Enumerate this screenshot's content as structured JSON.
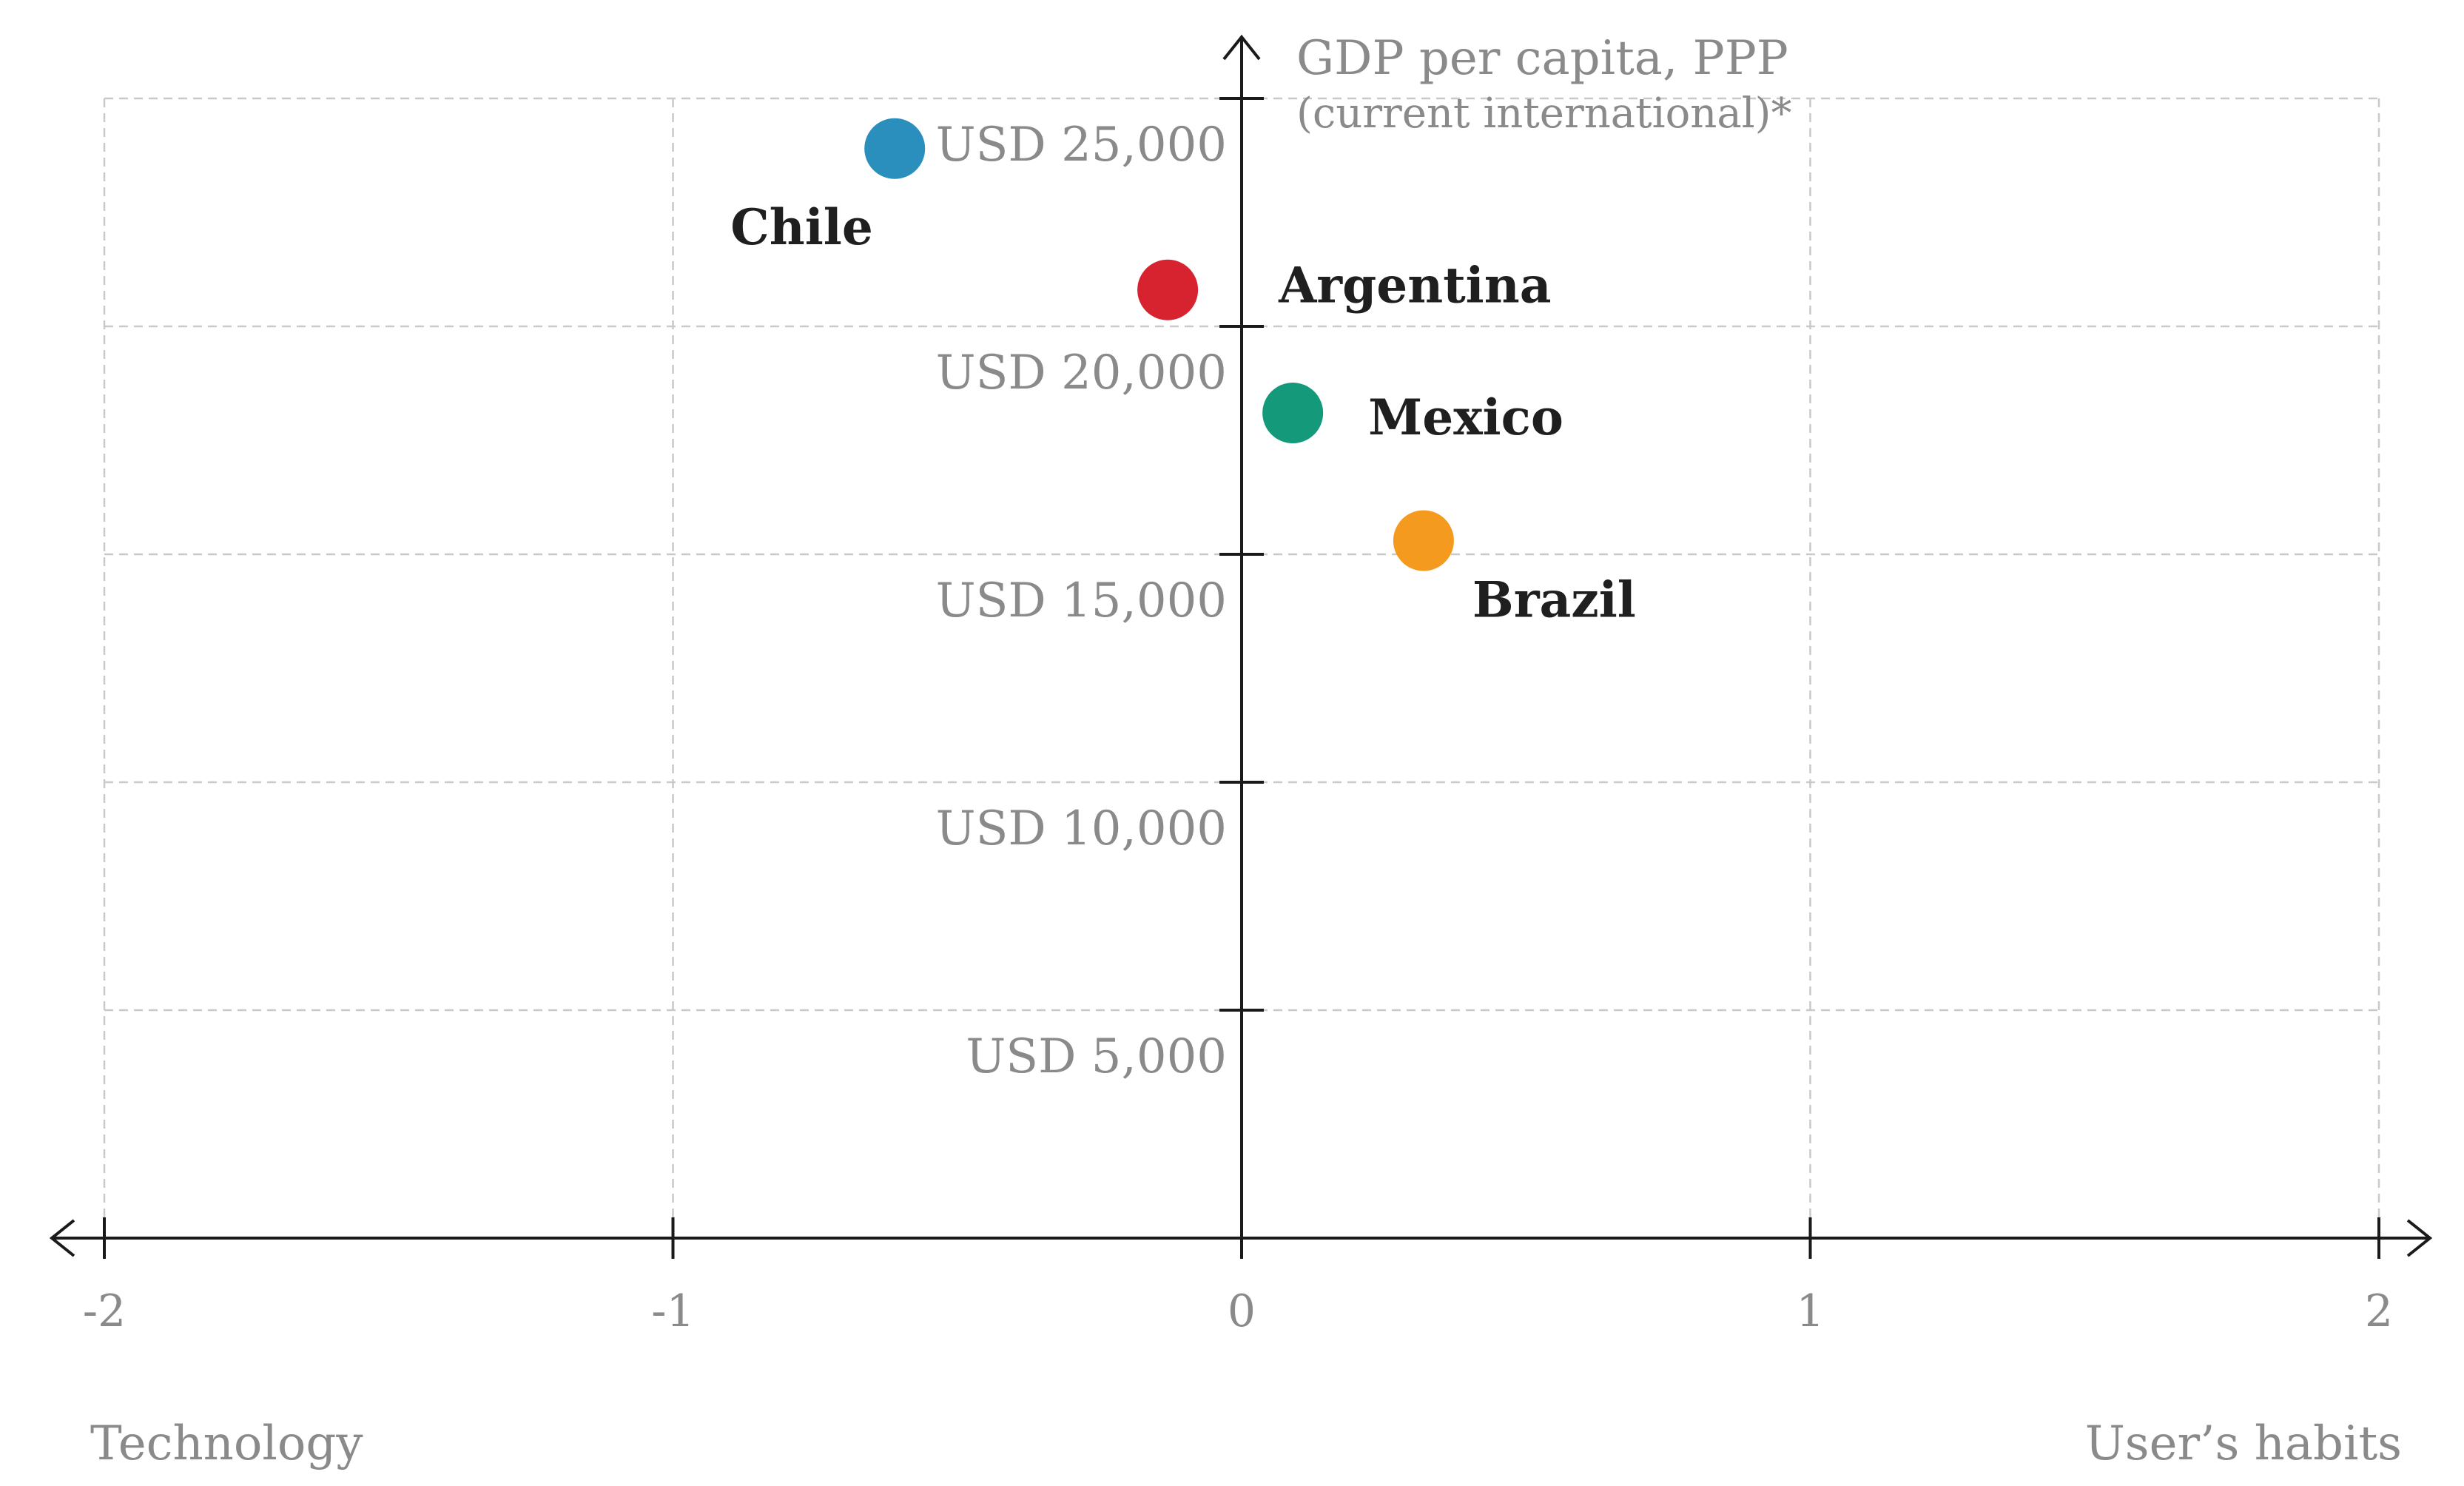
{
  "chart_data": {
    "type": "scatter",
    "title": "",
    "xlim": [
      -2,
      2
    ],
    "ylim": [
      0,
      25000
    ],
    "x_ticks": [
      {
        "value": -2,
        "label": "-2"
      },
      {
        "value": -1,
        "label": "-1"
      },
      {
        "value": 0,
        "label": "0"
      },
      {
        "value": 1,
        "label": "1"
      },
      {
        "value": 2,
        "label": "2"
      }
    ],
    "y_ticks": [
      {
        "value": 5000,
        "label": "USD 5,000"
      },
      {
        "value": 10000,
        "label": "USD 10,000"
      },
      {
        "value": 15000,
        "label": "USD 15,000"
      },
      {
        "value": 20000,
        "label": "USD 20,000"
      },
      {
        "value": 25000,
        "label": "USD 25,000"
      }
    ],
    "ylabel": "GDP per capita, PPP",
    "ylabel_sub": "(current international)*",
    "x_left_label": "Technology",
    "x_right_label": "User’s habits",
    "grid": true,
    "points": [
      {
        "label": "Chile",
        "x": -0.61,
        "y": 23900,
        "color": "#2a8fbd"
      },
      {
        "label": "Argentina",
        "x": -0.13,
        "y": 20800,
        "color": "#d6232f"
      },
      {
        "label": "Mexico",
        "x": 0.09,
        "y": 18100,
        "color": "#14997a"
      },
      {
        "label": "Brazil",
        "x": 0.32,
        "y": 15300,
        "color": "#f39a1f"
      }
    ]
  }
}
